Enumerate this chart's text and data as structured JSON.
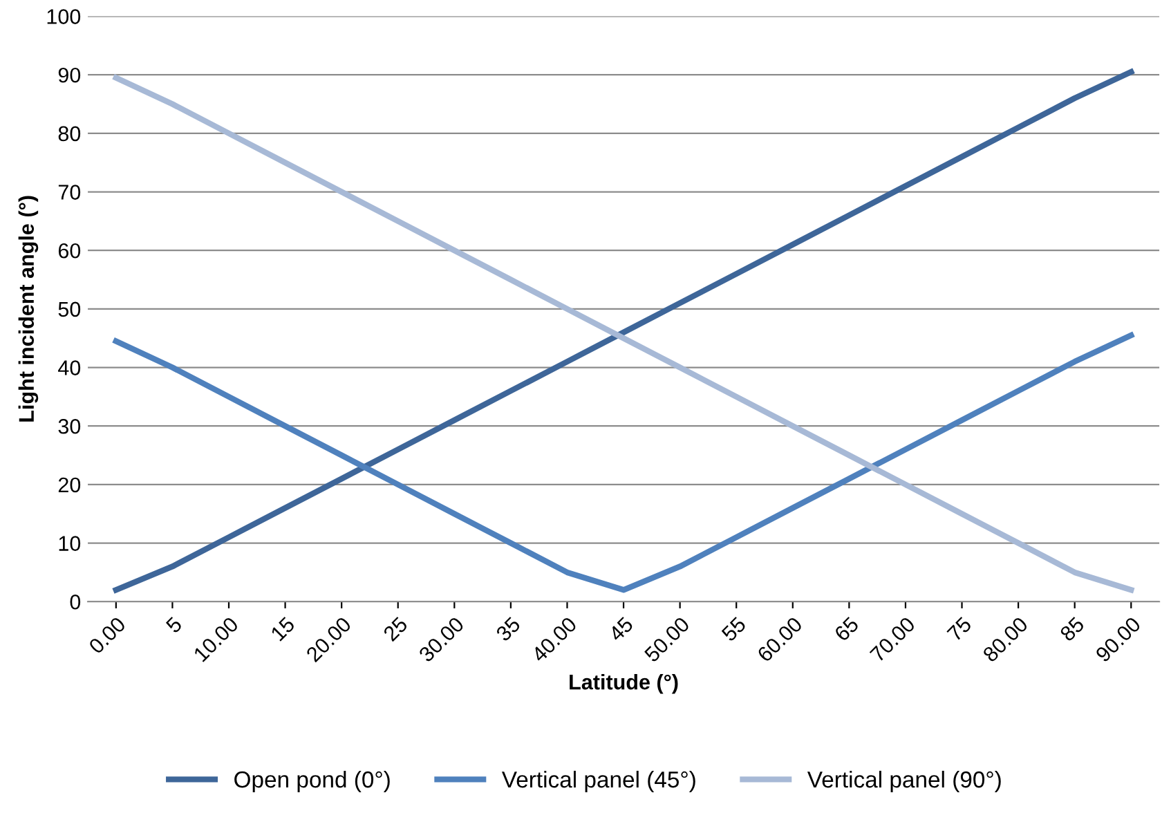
{
  "chart_data": {
    "type": "line",
    "xlabel": "Latitude (°)",
    "ylabel": "Light incident angle (°)",
    "categories": [
      "0.00",
      "5",
      "10.00",
      "15",
      "20.00",
      "25",
      "30.00",
      "35",
      "40.00",
      "45",
      "50.00",
      "55",
      "60.00",
      "65",
      "70.00",
      "75",
      "80.00",
      "85",
      "90.00"
    ],
    "series": [
      {
        "name": "Open pond (0°)",
        "color": "#3e6699",
        "values": [
          2,
          6,
          11,
          16,
          21,
          26,
          31,
          36,
          41,
          46,
          51,
          56,
          61,
          66,
          71,
          76,
          81,
          86,
          90.5
        ]
      },
      {
        "name": "Vertical panel (45°)",
        "color": "#4f81bd",
        "values": [
          44.5,
          40,
          35,
          30,
          25,
          20,
          15,
          10,
          5,
          2,
          6,
          11,
          16,
          21,
          26,
          31,
          36,
          41,
          45.5
        ]
      },
      {
        "name": "Vertical panel (90°)",
        "color": "#a7b9d6",
        "values": [
          89.5,
          85,
          80,
          75,
          70,
          65,
          60,
          55,
          50,
          45,
          40,
          35,
          30,
          25,
          20,
          15,
          10,
          5,
          2
        ]
      }
    ],
    "ylim": [
      0,
      100
    ],
    "yticks": [
      0,
      10,
      20,
      30,
      40,
      50,
      60,
      70,
      80,
      90,
      100
    ],
    "grid": "y",
    "legend": "bottom",
    "marker": "none",
    "line_style": "solid"
  }
}
